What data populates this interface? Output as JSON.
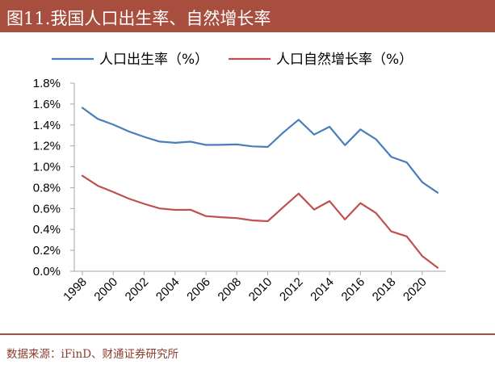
{
  "header": {
    "title": "图11.我国人口出生率、自然增长率"
  },
  "footer": {
    "source": "数据来源：iFinD、财通证券研究所"
  },
  "colors": {
    "title_bar": "#a84e3f",
    "birth_rate_line": "#4a7ebb",
    "natural_growth_line": "#c0504d",
    "axis": "#a6a6a6"
  },
  "chart_data": {
    "type": "line",
    "legend_position": "top",
    "grid": false,
    "x": [
      1998,
      1999,
      2000,
      2001,
      2002,
      2003,
      2004,
      2005,
      2006,
      2007,
      2008,
      2009,
      2010,
      2011,
      2012,
      2013,
      2014,
      2015,
      2016,
      2017,
      2018,
      2019,
      2020,
      2021
    ],
    "xticks": [
      "1998",
      "2000",
      "2002",
      "2004",
      "2006",
      "2008",
      "2010",
      "2012",
      "2014",
      "2016",
      "2018",
      "2020"
    ],
    "ylim": [
      0,
      0.018
    ],
    "yticks": [
      "0.0%",
      "0.2%",
      "0.4%",
      "0.6%",
      "0.8%",
      "1.0%",
      "1.2%",
      "1.4%",
      "1.6%",
      "1.8%"
    ],
    "series": [
      {
        "name": "人口出生率（%）",
        "color": "#4a7ebb",
        "values": [
          0.01564,
          0.01458,
          0.01403,
          0.01338,
          0.01286,
          0.01241,
          0.01229,
          0.0124,
          0.01209,
          0.0121,
          0.01214,
          0.01195,
          0.0119,
          0.01327,
          0.0145,
          0.01308,
          0.01383,
          0.01207,
          0.01357,
          0.01264,
          0.01094,
          0.01041,
          0.00852,
          0.00752
        ]
      },
      {
        "name": "人口自然增长率（%）",
        "color": "#c0504d",
        "values": [
          0.00914,
          0.00818,
          0.00758,
          0.00695,
          0.00645,
          0.00601,
          0.00587,
          0.00589,
          0.00528,
          0.00517,
          0.00508,
          0.00487,
          0.00479,
          0.00613,
          0.00743,
          0.0059,
          0.00671,
          0.00496,
          0.00652,
          0.00558,
          0.00381,
          0.00334,
          0.00145,
          0.00034
        ]
      }
    ]
  }
}
